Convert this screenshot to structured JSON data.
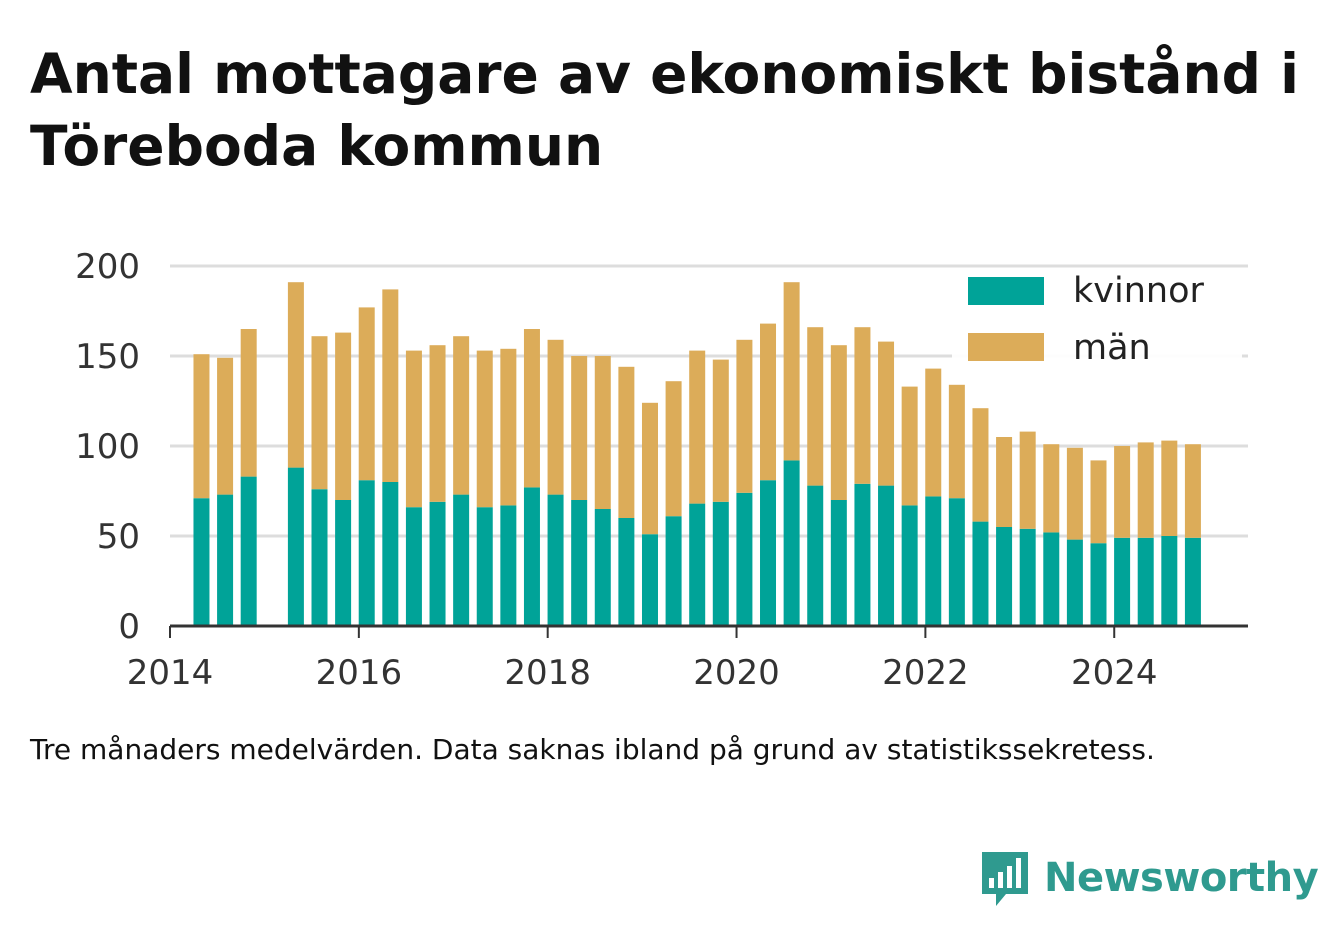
{
  "title": "Antal mottagare av ekonomiskt bistånd i Töreboda kommun",
  "footnote": "Tre månaders medelvärden. Data saknas ibland på grund av statistikssekretess.",
  "brand": {
    "name": "Newsworthy",
    "icon": "bar-chart-speech-icon",
    "color": "#2f9a8f"
  },
  "colors": {
    "kvinnor": "#00a398",
    "man": "#dcac59",
    "grid": "#dddddd",
    "axis": "#333333"
  },
  "chart_data": {
    "type": "bar",
    "stacked": true,
    "title": "Antal mottagare av ekonomiskt bistånd i Töreboda kommun",
    "xlabel": "",
    "ylabel": "",
    "ylim": [
      0,
      200
    ],
    "xlim": [
      "2014-01",
      "2025-06"
    ],
    "yticks": [
      0,
      50,
      100,
      150,
      200
    ],
    "xticks": [
      "2014",
      "2016",
      "2018",
      "2020",
      "2022",
      "2024"
    ],
    "grid": true,
    "legend": "top-right",
    "periods": [
      "2014-05",
      "2014-08",
      "2014-11",
      "2015-05",
      "2015-08",
      "2015-11",
      "2016-02",
      "2016-05",
      "2016-08",
      "2016-11",
      "2017-02",
      "2017-05",
      "2017-08",
      "2017-11",
      "2018-02",
      "2018-05",
      "2018-08",
      "2018-11",
      "2019-02",
      "2019-05",
      "2019-08",
      "2019-11",
      "2020-02",
      "2020-05",
      "2020-08",
      "2020-11",
      "2021-02",
      "2021-05",
      "2021-08",
      "2021-11",
      "2022-02",
      "2022-05",
      "2022-08",
      "2022-11",
      "2023-02",
      "2023-05",
      "2023-08",
      "2023-11",
      "2024-02",
      "2024-05",
      "2024-08",
      "2024-11"
    ],
    "series": [
      {
        "name": "kvinnor",
        "color": "#00a398",
        "values": [
          71,
          73,
          83,
          88,
          76,
          70,
          81,
          80,
          66,
          69,
          73,
          66,
          67,
          77,
          73,
          70,
          65,
          60,
          51,
          61,
          68,
          69,
          74,
          81,
          92,
          78,
          70,
          79,
          78,
          67,
          72,
          71,
          58,
          55,
          54,
          52,
          48,
          46,
          49,
          49,
          50,
          49
        ]
      },
      {
        "name": "män",
        "color": "#dcac59",
        "values": [
          80,
          76,
          82,
          103,
          85,
          93,
          96,
          107,
          87,
          87,
          88,
          87,
          87,
          88,
          86,
          80,
          85,
          84,
          73,
          75,
          85,
          79,
          85,
          87,
          99,
          88,
          86,
          87,
          80,
          66,
          71,
          63,
          63,
          50,
          54,
          49,
          51,
          46,
          51,
          53,
          53,
          52
        ]
      }
    ]
  }
}
